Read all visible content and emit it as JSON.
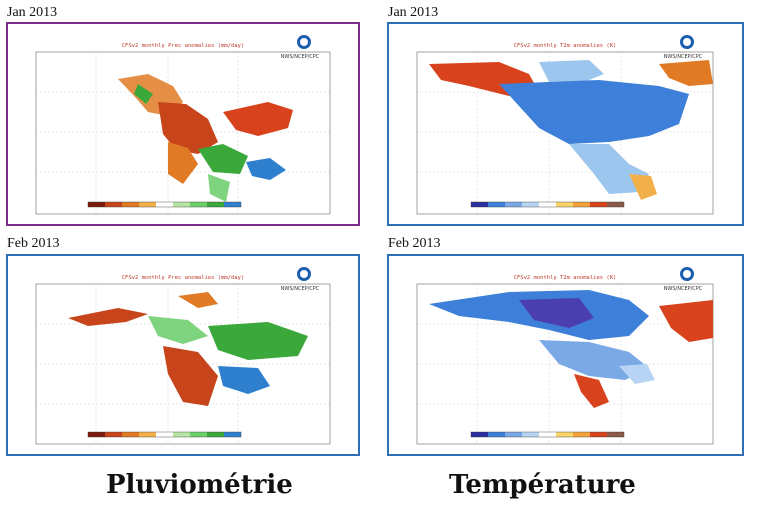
{
  "labels": {
    "top_left": "Jan 2013",
    "top_right": "Jan 2013",
    "bottom_left": "Feb 2013",
    "bottom_right": "Feb 2013"
  },
  "captions": {
    "left": "Pluviométrie",
    "right": "Température"
  },
  "panels": {
    "prec_title": "CFSv2 monthly Prec anomalies (mm/day)",
    "temp_title": "CFSv2 monthly T2m anomalies (K)",
    "agency": "NWS/NCEP/CPC"
  },
  "colors": {
    "frame_selected": "#7b2d8e",
    "frame": "#2f6fb3",
    "prec_wet": "#3aa83a",
    "prec_dry": "#c8451c",
    "temp_warm": "#d8431e",
    "temp_cold": "#3d7fd9"
  }
}
